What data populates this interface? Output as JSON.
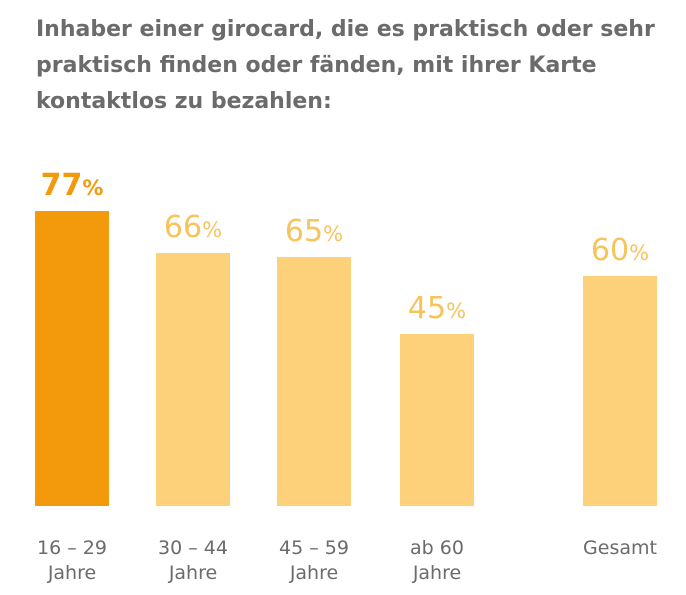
{
  "title": "Inhaber einer girocard, die es praktisch oder sehr praktisch finden oder fänden, mit ihrer Karte kontaktlos zu bezahlen:",
  "colors": {
    "highlight": "#f29a0b",
    "normal": "#fdd07a",
    "text": "#6b6b6b"
  },
  "chart_data": {
    "type": "bar",
    "title": "Inhaber einer girocard, die es praktisch oder sehr praktisch finden oder fänden, mit ihrer Karte kontaktlos zu bezahlen:",
    "unit": "%",
    "categories": [
      {
        "line1": "16 – 29",
        "line2": "Jahre"
      },
      {
        "line1": "30 – 44",
        "line2": "Jahre"
      },
      {
        "line1": "45 – 59",
        "line2": "Jahre"
      },
      {
        "line1": "ab 60",
        "line2": "Jahre"
      },
      {
        "line1": "Gesamt",
        "line2": ""
      }
    ],
    "values": [
      77,
      66,
      65,
      45,
      60
    ],
    "highlight_index": 0,
    "ylim": [
      0,
      100
    ]
  }
}
